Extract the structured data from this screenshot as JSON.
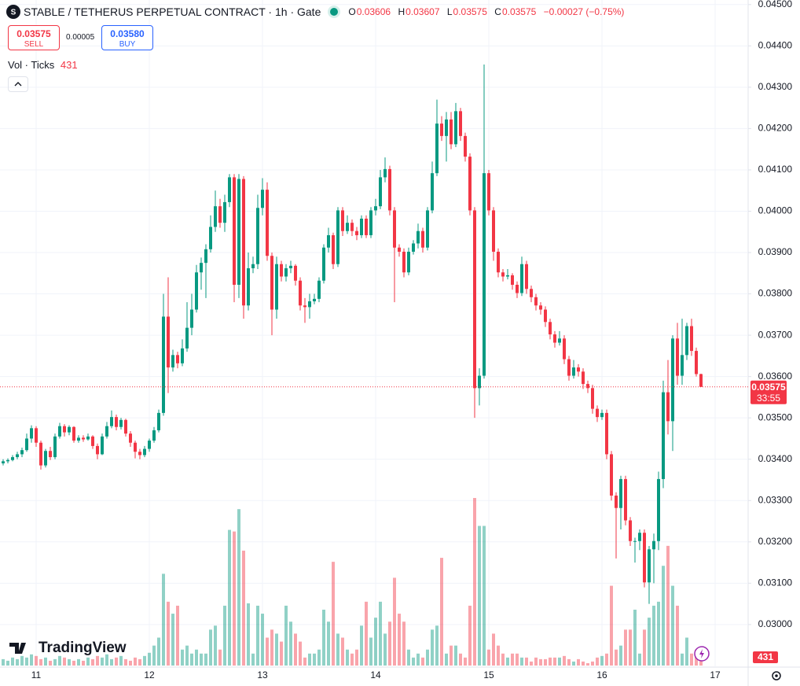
{
  "chart_data": {
    "type": "candlestick",
    "title": "STABLE / TETHERUS PERPETUAL CONTRACT · 1h · Gate",
    "ohlc_labels": [
      "O",
      "H",
      "L",
      "C"
    ],
    "change": "−0.00027 (−0.75%)",
    "trade": {
      "sell_label": "SELL",
      "buy_label": "BUY",
      "buy_price": "0.03580",
      "spread": "0.00005"
    },
    "volume_title": "Vol · Ticks",
    "countdown": "33:55",
    "brand": "TradingView",
    "up_color": "#089981",
    "down_color": "#f23645",
    "grid": true,
    "ylim": [
      0.02897,
      0.04511
    ],
    "yticks": [
      {
        "value": 0.045,
        "label": "0.04500"
      },
      {
        "value": 0.044,
        "label": "0.04400"
      },
      {
        "value": 0.043,
        "label": "0.04300"
      },
      {
        "value": 0.042,
        "label": "0.04200"
      },
      {
        "value": 0.041,
        "label": "0.04100"
      },
      {
        "value": 0.04,
        "label": "0.04000"
      },
      {
        "value": 0.039,
        "label": "0.03900"
      },
      {
        "value": 0.038,
        "label": "0.03800"
      },
      {
        "value": 0.037,
        "label": "0.03700"
      },
      {
        "value": 0.036,
        "label": "0.03600"
      },
      {
        "value": 0.035,
        "label": "0.03500"
      },
      {
        "value": 0.034,
        "label": "0.03400"
      },
      {
        "value": 0.033,
        "label": "0.03300"
      },
      {
        "value": 0.032,
        "label": "0.03200"
      },
      {
        "value": 0.031,
        "label": "0.03100"
      },
      {
        "value": 0.03,
        "label": "0.03000"
      }
    ],
    "xtick_labels": [
      "11",
      "12",
      "13",
      "14",
      "15",
      "16",
      "17"
    ],
    "ohlc": [
      [
        0.0339,
        0.034,
        0.03385,
        0.03395
      ],
      [
        0.03395,
        0.03402,
        0.0339,
        0.03398
      ],
      [
        0.03398,
        0.0341,
        0.03395,
        0.03405
      ],
      [
        0.03405,
        0.03418,
        0.034,
        0.03412
      ],
      [
        0.03412,
        0.03428,
        0.03405,
        0.03422
      ],
      [
        0.03422,
        0.03462,
        0.03418,
        0.0345
      ],
      [
        0.0345,
        0.03482,
        0.0344,
        0.03475
      ],
      [
        0.03475,
        0.0348,
        0.0343,
        0.0344
      ],
      [
        0.0344,
        0.03445,
        0.03375,
        0.03385
      ],
      [
        0.03385,
        0.03425,
        0.0338,
        0.0342
      ],
      [
        0.0342,
        0.0343,
        0.03398,
        0.03405
      ],
      [
        0.03405,
        0.03462,
        0.034,
        0.03455
      ],
      [
        0.03455,
        0.03488,
        0.0345,
        0.0348
      ],
      [
        0.0348,
        0.03485,
        0.03455,
        0.03465
      ],
      [
        0.03465,
        0.03482,
        0.03458,
        0.03478
      ],
      [
        0.03478,
        0.0348,
        0.0344,
        0.03445
      ],
      [
        0.03445,
        0.03458,
        0.0344,
        0.03452
      ],
      [
        0.03452,
        0.03458,
        0.03442,
        0.03448
      ],
      [
        0.03448,
        0.03462,
        0.03445,
        0.03455
      ],
      [
        0.03455,
        0.03458,
        0.03425,
        0.03432
      ],
      [
        0.03432,
        0.03438,
        0.034,
        0.03412
      ],
      [
        0.03412,
        0.03462,
        0.0341,
        0.03455
      ],
      [
        0.03455,
        0.0349,
        0.0345,
        0.0348
      ],
      [
        0.0348,
        0.03518,
        0.03475,
        0.03502
      ],
      [
        0.03502,
        0.03508,
        0.0347,
        0.03478
      ],
      [
        0.03478,
        0.035,
        0.03472,
        0.03495
      ],
      [
        0.03495,
        0.03498,
        0.03455,
        0.03462
      ],
      [
        0.03462,
        0.03468,
        0.0343,
        0.0344
      ],
      [
        0.0344,
        0.03445,
        0.03402,
        0.03418
      ],
      [
        0.03418,
        0.03425,
        0.034,
        0.0341
      ],
      [
        0.0341,
        0.03432,
        0.03405,
        0.03425
      ],
      [
        0.03425,
        0.0345,
        0.03418,
        0.03445
      ],
      [
        0.03445,
        0.03478,
        0.0344,
        0.0347
      ],
      [
        0.0347,
        0.0352,
        0.03465,
        0.03512
      ],
      [
        0.03512,
        0.038,
        0.03505,
        0.03745
      ],
      [
        0.03745,
        0.0384,
        0.0356,
        0.03622
      ],
      [
        0.03622,
        0.03665,
        0.03612,
        0.03652
      ],
      [
        0.03652,
        0.0366,
        0.0362,
        0.03632
      ],
      [
        0.03632,
        0.0369,
        0.03625,
        0.03668
      ],
      [
        0.03668,
        0.0378,
        0.0366,
        0.03718
      ],
      [
        0.03718,
        0.038,
        0.037,
        0.03762
      ],
      [
        0.03762,
        0.0387,
        0.03755,
        0.03852
      ],
      [
        0.03852,
        0.03888,
        0.0381,
        0.03875
      ],
      [
        0.03875,
        0.0392,
        0.0379,
        0.03908
      ],
      [
        0.03908,
        0.0399,
        0.039,
        0.03962
      ],
      [
        0.03962,
        0.0405,
        0.0395,
        0.04012
      ],
      [
        0.04012,
        0.0403,
        0.0396,
        0.03972
      ],
      [
        0.03972,
        0.0404,
        0.0395,
        0.04022
      ],
      [
        0.04022,
        0.0409,
        0.0401,
        0.04082
      ],
      [
        0.04082,
        0.0409,
        0.0378,
        0.03822
      ],
      [
        0.03822,
        0.0409,
        0.0379,
        0.04078
      ],
      [
        0.04078,
        0.04085,
        0.0374,
        0.03772
      ],
      [
        0.03772,
        0.039,
        0.0376,
        0.03862
      ],
      [
        0.03862,
        0.0389,
        0.0385,
        0.03872
      ],
      [
        0.03872,
        0.0404,
        0.0386,
        0.04008
      ],
      [
        0.04008,
        0.0408,
        0.0399,
        0.04052
      ],
      [
        0.04052,
        0.0407,
        0.0388,
        0.03892
      ],
      [
        0.03892,
        0.039,
        0.037,
        0.03762
      ],
      [
        0.03762,
        0.0389,
        0.0374,
        0.03872
      ],
      [
        0.03872,
        0.0388,
        0.0383,
        0.03842
      ],
      [
        0.03842,
        0.03872,
        0.0383,
        0.03862
      ],
      [
        0.03862,
        0.0388,
        0.0385,
        0.03868
      ],
      [
        0.03868,
        0.03872,
        0.0382,
        0.03832
      ],
      [
        0.03832,
        0.0384,
        0.0376,
        0.03772
      ],
      [
        0.03772,
        0.0379,
        0.0373,
        0.03768
      ],
      [
        0.03768,
        0.038,
        0.0374,
        0.03782
      ],
      [
        0.03782,
        0.038,
        0.03775,
        0.03788
      ],
      [
        0.03788,
        0.0384,
        0.0378,
        0.03832
      ],
      [
        0.03832,
        0.0392,
        0.03825,
        0.03912
      ],
      [
        0.03912,
        0.0396,
        0.039,
        0.03942
      ],
      [
        0.03942,
        0.03948,
        0.0386,
        0.03872
      ],
      [
        0.03872,
        0.0401,
        0.03865,
        0.04002
      ],
      [
        0.04002,
        0.0401,
        0.0394,
        0.03952
      ],
      [
        0.03952,
        0.0399,
        0.03945,
        0.03972
      ],
      [
        0.03972,
        0.0398,
        0.0394,
        0.03952
      ],
      [
        0.03952,
        0.03962,
        0.0393,
        0.03942
      ],
      [
        0.03942,
        0.0399,
        0.03935,
        0.03982
      ],
      [
        0.03982,
        0.0399,
        0.03935,
        0.03942
      ],
      [
        0.03942,
        0.0401,
        0.03935,
        0.04002
      ],
      [
        0.04002,
        0.0403,
        0.0399,
        0.04012
      ],
      [
        0.04012,
        0.041,
        0.04005,
        0.04082
      ],
      [
        0.04082,
        0.0413,
        0.0407,
        0.04102
      ],
      [
        0.04102,
        0.0411,
        0.0399,
        0.04002
      ],
      [
        0.04002,
        0.0401,
        0.0378,
        0.03912
      ],
      [
        0.03912,
        0.0392,
        0.0389,
        0.03902
      ],
      [
        0.03902,
        0.0391,
        0.0384,
        0.03852
      ],
      [
        0.03852,
        0.03912,
        0.03845,
        0.03902
      ],
      [
        0.03902,
        0.0393,
        0.03895,
        0.03922
      ],
      [
        0.03922,
        0.0397,
        0.0391,
        0.03952
      ],
      [
        0.03952,
        0.0396,
        0.039,
        0.03912
      ],
      [
        0.03912,
        0.0401,
        0.03905,
        0.04002
      ],
      [
        0.04002,
        0.0412,
        0.03995,
        0.04092
      ],
      [
        0.04092,
        0.0427,
        0.04085,
        0.04212
      ],
      [
        0.04212,
        0.0423,
        0.0417,
        0.04182
      ],
      [
        0.04182,
        0.0424,
        0.0412,
        0.04222
      ],
      [
        0.04222,
        0.0424,
        0.0415,
        0.04162
      ],
      [
        0.04162,
        0.04262,
        0.04155,
        0.04242
      ],
      [
        0.04242,
        0.0425,
        0.0417,
        0.04182
      ],
      [
        0.04182,
        0.0419,
        0.0412,
        0.04132
      ],
      [
        0.04132,
        0.0414,
        0.0399,
        0.04002
      ],
      [
        0.04002,
        0.0401,
        0.035,
        0.03572
      ],
      [
        0.03572,
        0.0362,
        0.0353,
        0.03602
      ],
      [
        0.03602,
        0.04355,
        0.03595,
        0.04092
      ],
      [
        0.04092,
        0.041,
        0.0399,
        0.04002
      ],
      [
        0.04002,
        0.0401,
        0.0388,
        0.03902
      ],
      [
        0.03902,
        0.0391,
        0.0384,
        0.03852
      ],
      [
        0.03852,
        0.0386,
        0.0383,
        0.03842
      ],
      [
        0.03842,
        0.0386,
        0.03835,
        0.03845
      ],
      [
        0.03845,
        0.0385,
        0.0381,
        0.03822
      ],
      [
        0.03822,
        0.0383,
        0.0379,
        0.03802
      ],
      [
        0.03802,
        0.0389,
        0.03795,
        0.03872
      ],
      [
        0.03872,
        0.0388,
        0.038,
        0.03812
      ],
      [
        0.03812,
        0.0382,
        0.0378,
        0.03792
      ],
      [
        0.03792,
        0.038,
        0.0376,
        0.03772
      ],
      [
        0.03772,
        0.0378,
        0.0375,
        0.03762
      ],
      [
        0.03762,
        0.0377,
        0.0372,
        0.03732
      ],
      [
        0.03732,
        0.0374,
        0.0369,
        0.03702
      ],
      [
        0.03702,
        0.0371,
        0.0367,
        0.03682
      ],
      [
        0.03682,
        0.0371,
        0.03675,
        0.03692
      ],
      [
        0.03692,
        0.037,
        0.0363,
        0.03642
      ],
      [
        0.03642,
        0.0365,
        0.0359,
        0.03602
      ],
      [
        0.03602,
        0.0364,
        0.03595,
        0.03622
      ],
      [
        0.03622,
        0.0363,
        0.036,
        0.03612
      ],
      [
        0.03612,
        0.0362,
        0.0357,
        0.03582
      ],
      [
        0.03582,
        0.0359,
        0.0356,
        0.03572
      ],
      [
        0.03572,
        0.0358,
        0.0351,
        0.03522
      ],
      [
        0.03522,
        0.0353,
        0.0349,
        0.03502
      ],
      [
        0.03502,
        0.0352,
        0.03495,
        0.03512
      ],
      [
        0.03512,
        0.0352,
        0.034,
        0.03412
      ],
      [
        0.03412,
        0.0342,
        0.033,
        0.03312
      ],
      [
        0.03312,
        0.0332,
        0.0316,
        0.03282
      ],
      [
        0.03282,
        0.0336,
        0.0323,
        0.03352
      ],
      [
        0.03352,
        0.0336,
        0.0324,
        0.03252
      ],
      [
        0.03252,
        0.0326,
        0.0319,
        0.03202
      ],
      [
        0.03202,
        0.0321,
        0.0315,
        0.03202
      ],
      [
        0.03202,
        0.0323,
        0.0318,
        0.03222
      ],
      [
        0.03222,
        0.0323,
        0.0309,
        0.03102
      ],
      [
        0.03102,
        0.0319,
        0.0305,
        0.03182
      ],
      [
        0.03182,
        0.0322,
        0.031,
        0.03202
      ],
      [
        0.03202,
        0.0337,
        0.0318,
        0.03352
      ],
      [
        0.03352,
        0.0359,
        0.0333,
        0.03562
      ],
      [
        0.03562,
        0.0364,
        0.0346,
        0.03492
      ],
      [
        0.03492,
        0.037,
        0.0342,
        0.03692
      ],
      [
        0.03692,
        0.0373,
        0.0358,
        0.03602
      ],
      [
        0.03602,
        0.0374,
        0.0358,
        0.03652
      ],
      [
        0.03652,
        0.0373,
        0.0364,
        0.03722
      ],
      [
        0.03722,
        0.0374,
        0.0365,
        0.03662
      ],
      [
        0.03662,
        0.0367,
        0.036,
        0.03606
      ],
      [
        0.03606,
        0.03607,
        0.03575,
        0.03575
      ]
    ],
    "volume": [
      200,
      150,
      250,
      200,
      300,
      250,
      350,
      300,
      200,
      250,
      150,
      200,
      300,
      250,
      200,
      150,
      200,
      150,
      250,
      200,
      300,
      250,
      350,
      200,
      250,
      300,
      200,
      150,
      250,
      200,
      300,
      400,
      625,
      875,
      2875,
      2000,
      1625,
      1875,
      500,
      625,
      375,
      500,
      375,
      375,
      1125,
      1250,
      500,
      1875,
      4250,
      4200,
      4900,
      3600,
      1950,
      375,
      1875,
      1625,
      875,
      1125,
      1000,
      750,
      1875,
      1375,
      1000,
      750,
      250,
      375,
      375,
      500,
      1750,
      1375,
      3250,
      1000,
      875,
      500,
      375,
      500,
      1250,
      2000,
      875,
      1500,
      2000,
      1000,
      1375,
      2750,
      1625,
      1375,
      500,
      250,
      375,
      250,
      500,
      1125,
      1250,
      3375,
      375,
      625,
      625,
      375,
      250,
      1875,
      5250,
      4375,
      4375,
      500,
      1000,
      625,
      375,
      250,
      375,
      375,
      250,
      250,
      125,
      250,
      200,
      200,
      250,
      250,
      250,
      300,
      200,
      125,
      200,
      125,
      75,
      125,
      250,
      300,
      375,
      2500,
      500,
      625,
      1125,
      1125,
      1750,
      375,
      1125,
      1500,
      1875,
      2000,
      3125,
      3750,
      2500,
      1875,
      375,
      875,
      375,
      500,
      431
    ]
  }
}
